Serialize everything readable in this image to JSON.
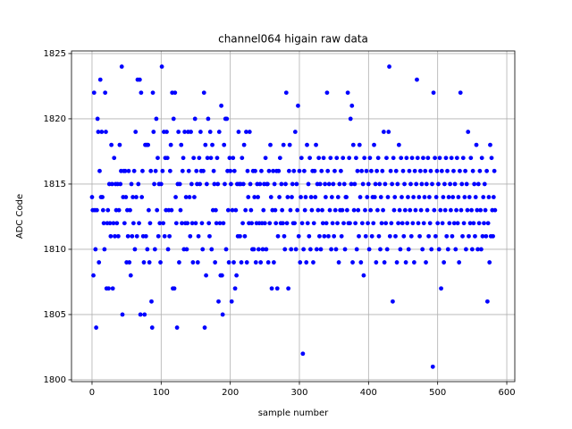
{
  "chart_data": {
    "type": "scatter",
    "title": "channel064 higain raw data",
    "x_label": "sample number",
    "y_label": "ADC Code",
    "color": "#0000ff",
    "grid": true,
    "xlim": [
      -29.7,
      611.6
    ],
    "xticks": [
      0,
      100,
      200,
      300,
      400,
      500,
      600
    ],
    "ylim": [
      1799.86,
      1825.2
    ],
    "yticks": [
      1800,
      1805,
      1810,
      1815,
      1820,
      1825
    ],
    "x": [
      0,
      1,
      2,
      3,
      4,
      5,
      6,
      7,
      8,
      9,
      10,
      11,
      12,
      13,
      14,
      15,
      16,
      17,
      18,
      19,
      20,
      21,
      22,
      23,
      24,
      25,
      26,
      27,
      28,
      29,
      30,
      31,
      32,
      33,
      34,
      35,
      36,
      37,
      38,
      39,
      40,
      41,
      42,
      43,
      44,
      45,
      46,
      47,
      48,
      49,
      50,
      51,
      52,
      53,
      54,
      55,
      56,
      57,
      58,
      59,
      60,
      61,
      62,
      63,
      64,
      65,
      66,
      67,
      68,
      69,
      70,
      71,
      72,
      73,
      74,
      75,
      76,
      77,
      78,
      79,
      80,
      81,
      82,
      83,
      84,
      85,
      86,
      87,
      88,
      89,
      90,
      91,
      92,
      93,
      94,
      95,
      96,
      97,
      98,
      99,
      100,
      101,
      102,
      103,
      104,
      105,
      106,
      107,
      108,
      109,
      110,
      111,
      112,
      113,
      114,
      115,
      116,
      117,
      118,
      119,
      120,
      121,
      122,
      123,
      124,
      125,
      126,
      127,
      128,
      129,
      130,
      131,
      132,
      133,
      134,
      135,
      136,
      137,
      138,
      139,
      140,
      141,
      142,
      143,
      144,
      145,
      146,
      147,
      148,
      149,
      150,
      151,
      152,
      153,
      154,
      155,
      156,
      157,
      158,
      159,
      160,
      161,
      162,
      163,
      164,
      165,
      166,
      167,
      168,
      169,
      170,
      171,
      172,
      173,
      174,
      175,
      176,
      177,
      178,
      179,
      180,
      181,
      182,
      183,
      184,
      185,
      186,
      187,
      188,
      189,
      190,
      191,
      192,
      193,
      194,
      195,
      196,
      197,
      198,
      199,
      200,
      201,
      202,
      203,
      204,
      205,
      206,
      207,
      208,
      209,
      210,
      211,
      212,
      213,
      214,
      215,
      216,
      217,
      218,
      219,
      220,
      221,
      222,
      223,
      224,
      225,
      226,
      227,
      228,
      229,
      230,
      231,
      232,
      233,
      234,
      235,
      236,
      237,
      238,
      239,
      240,
      241,
      242,
      243,
      244,
      245,
      246,
      247,
      248,
      249,
      250,
      251,
      252,
      253,
      254,
      255,
      256,
      257,
      258,
      259,
      260,
      261,
      262,
      263,
      264,
      265,
      266,
      267,
      268,
      269,
      270,
      271,
      272,
      273,
      274,
      275,
      276,
      277,
      278,
      279,
      280,
      281,
      282,
      283,
      284,
      285,
      286,
      287,
      288,
      289,
      290,
      291,
      292,
      293,
      294,
      295,
      296,
      297,
      298,
      299,
      300,
      301,
      302,
      303,
      304,
      305,
      306,
      307,
      308,
      309,
      310,
      311,
      312,
      313,
      314,
      315,
      316,
      317,
      318,
      319,
      320,
      321,
      322,
      323,
      324,
      325,
      326,
      327,
      328,
      329,
      330,
      331,
      332,
      333,
      334,
      335,
      336,
      337,
      338,
      339,
      340,
      341,
      342,
      343,
      344,
      345,
      346,
      347,
      348,
      349,
      350,
      351,
      352,
      353,
      354,
      355,
      356,
      357,
      358,
      359,
      360,
      361,
      362,
      363,
      364,
      365,
      366,
      367,
      368,
      369,
      370,
      371,
      372,
      373,
      374,
      375,
      376,
      377,
      378,
      379,
      380,
      381,
      382,
      383,
      384,
      385,
      386,
      387,
      388,
      389,
      390,
      391,
      392,
      393,
      394,
      395,
      396,
      397,
      398,
      399,
      400,
      401,
      402,
      403,
      404,
      405,
      406,
      407,
      408,
      409,
      410,
      411,
      412,
      413,
      414,
      415,
      416,
      417,
      418,
      419,
      420,
      421,
      422,
      423,
      424,
      425,
      426,
      427,
      428,
      429,
      430,
      431,
      432,
      433,
      434,
      435,
      436,
      437,
      438,
      439,
      440,
      441,
      442,
      443,
      444,
      445,
      446,
      447,
      448,
      449,
      450,
      451,
      452,
      453,
      454,
      455,
      456,
      457,
      458,
      459,
      460,
      461,
      462,
      463,
      464,
      465,
      466,
      467,
      468,
      469,
      470,
      471,
      472,
      473,
      474,
      475,
      476,
      477,
      478,
      479,
      480,
      481,
      482,
      483,
      484,
      485,
      486,
      487,
      488,
      489,
      490,
      491,
      492,
      493,
      494,
      495,
      496,
      497,
      498,
      499,
      500,
      501,
      502,
      503,
      504,
      505,
      506,
      507,
      508,
      509,
      510,
      511,
      512,
      513,
      514,
      515,
      516,
      517,
      518,
      519,
      520,
      521,
      522,
      523,
      524,
      525,
      526,
      527,
      528,
      529,
      530,
      531,
      532,
      533,
      534,
      535,
      536,
      537,
      538,
      539,
      540,
      541,
      542,
      543,
      544,
      545,
      546,
      547,
      548,
      549,
      550,
      551,
      552,
      553,
      554,
      555,
      556,
      557,
      558,
      559,
      560,
      561,
      562,
      563,
      564,
      565,
      566,
      567,
      568,
      569,
      570,
      571,
      572,
      573,
      574,
      575,
      576,
      577,
      578,
      579,
      580,
      581,
      582,
      583
    ],
    "values": [
      1814,
      1813,
      1808,
      1822,
      1813,
      1810,
      1804,
      1813,
      1820,
      1819,
      1809,
      1816,
      1823,
      1814,
      1819,
      1814,
      1813,
      1812,
      1810,
      1822,
      1819,
      1807,
      1812,
      1813,
      1807,
      1815,
      1812,
      1811,
      1818,
      1815,
      1807,
      1812,
      1817,
      1811,
      1815,
      1813,
      1812,
      1815,
      1811,
      1813,
      1818,
      1815,
      1816,
      1824,
      1805,
      1814,
      1816,
      1812,
      1816,
      1814,
      1809,
      1813,
      1811,
      1816,
      1809,
      1813,
      1808,
      1815,
      1811,
      1814,
      1812,
      1816,
      1810,
      1819,
      1814,
      1811,
      1823,
      1815,
      1812,
      1823,
      1805,
      1822,
      1814,
      1816,
      1811,
      1809,
      1805,
      1818,
      1811,
      1818,
      1810,
      1818,
      1813,
      1809,
      1812,
      1816,
      1806,
      1804,
      1822,
      1819,
      1815,
      1810,
      1816,
      1820,
      1813,
      1817,
      1811,
      1815,
      1812,
      1809,
      1815,
      1824,
      1816,
      1812,
      1819,
      1811,
      1817,
      1813,
      1819,
      1817,
      1810,
      1813,
      1811,
      1816,
      1818,
      1813,
      1822,
      1807,
      1820,
      1807,
      1822,
      1814,
      1812,
      1804,
      1815,
      1819,
      1809,
      1815,
      1813,
      1818,
      1812,
      1816,
      1817,
      1810,
      1819,
      1812,
      1814,
      1810,
      1812,
      1819,
      1816,
      1814,
      1811,
      1819,
      1815,
      1812,
      1809,
      1817,
      1814,
      1820,
      1812,
      1816,
      1815,
      1809,
      1811,
      1817,
      1815,
      1819,
      1816,
      1812,
      1810,
      1816,
      1822,
      1804,
      1818,
      1808,
      1815,
      1817,
      1820,
      1812,
      1811,
      1819,
      1817,
      1810,
      1818,
      1813,
      1816,
      1815,
      1809,
      1813,
      1812,
      1817,
      1815,
      1806,
      1819,
      1812,
      1808,
      1821,
      1808,
      1805,
      1812,
      1818,
      1815,
      1820,
      1810,
      1820,
      1816,
      1813,
      1809,
      1817,
      1816,
      1815,
      1806,
      1813,
      1817,
      1809,
      1816,
      1807,
      1813,
      1808,
      1815,
      1811,
      1819,
      1815,
      1811,
      1815,
      1809,
      1817,
      1812,
      1815,
      1818,
      1811,
      1813,
      1819,
      1809,
      1816,
      1814,
      1812,
      1819,
      1815,
      1813,
      1812,
      1810,
      1816,
      1810,
      1814,
      1816,
      1809,
      1812,
      1815,
      1814,
      1810,
      1812,
      1815,
      1809,
      1816,
      1812,
      1810,
      1813,
      1815,
      1812,
      1817,
      1810,
      1815,
      1815,
      1809,
      1816,
      1812,
      1818,
      1814,
      1807,
      1813,
      1816,
      1809,
      1815,
      1813,
      1812,
      1816,
      1807,
      1811,
      1816,
      1814,
      1817,
      1812,
      1815,
      1813,
      1812,
      1818,
      1811,
      1810,
      1815,
      1822,
      1812,
      1814,
      1807,
      1816,
      1818,
      1813,
      1810,
      1814,
      1815,
      1812,
      1816,
      1812,
      1819,
      1810,
      1815,
      1813,
      1821,
      1811,
      1816,
      1809,
      1814,
      1817,
      1812,
      1802,
      1810,
      1816,
      1813,
      1814,
      1809,
      1818,
      1812,
      1815,
      1811,
      1817,
      1810,
      1814,
      1813,
      1816,
      1809,
      1812,
      1816,
      1814,
      1818,
      1810,
      1815,
      1813,
      1817,
      1811,
      1815,
      1810,
      1816,
      1813,
      1812,
      1817,
      1811,
      1815,
      1814,
      1812,
      1822,
      1816,
      1811,
      1815,
      1813,
      1817,
      1810,
      1814,
      1812,
      1815,
      1811,
      1816,
      1813,
      1810,
      1817,
      1812,
      1814,
      1809,
      1815,
      1813,
      1816,
      1811,
      1813,
      1817,
      1812,
      1815,
      1810,
      1814,
      1814,
      1813,
      1822,
      1812,
      1817,
      1812,
      1820,
      1815,
      1821,
      1809,
      1818,
      1813,
      1815,
      1812,
      1817,
      1810,
      1816,
      1813,
      1811,
      1818,
      1814,
      1809,
      1816,
      1812,
      1815,
      1808,
      1817,
      1813,
      1811,
      1816,
      1814,
      1812,
      1815,
      1810,
      1817,
      1813,
      1816,
      1811,
      1814,
      1812,
      1818,
      1814,
      1815,
      1809,
      1816,
      1813,
      1817,
      1811,
      1815,
      1810,
      1814,
      1812,
      1816,
      1813,
      1819,
      1809,
      1815,
      1812,
      1817,
      1810,
      1814,
      1819,
      1824,
      1811,
      1816,
      1812,
      1815,
      1806,
      1817,
      1813,
      1814,
      1811,
      1816,
      1809,
      1815,
      1812,
      1818,
      1813,
      1810,
      1817,
      1814,
      1812,
      1816,
      1811,
      1815,
      1813,
      1809,
      1817,
      1812,
      1814,
      1810,
      1816,
      1813,
      1815,
      1811,
      1817,
      1812,
      1814,
      1809,
      1816,
      1813,
      1815,
      1823,
      1817,
      1812,
      1814,
      1811,
      1816,
      1813,
      1815,
      1810,
      1817,
      1812,
      1814,
      1816,
      1809,
      1815,
      1813,
      1817,
      1811,
      1814,
      1812,
      1816,
      1810,
      1815,
      1801,
      1822,
      1813,
      1817,
      1811,
      1814,
      1816,
      1812,
      1815,
      1810,
      1817,
      1813,
      1807,
      1816,
      1812,
      1814,
      1809,
      1815,
      1813,
      1817,
      1811,
      1816,
      1810,
      1814,
      1812,
      1815,
      1813,
      1817,
      1811,
      1814,
      1816,
      1812,
      1815,
      1810,
      1813,
      1817,
      1812,
      1814,
      1809,
      1816,
      1822,
      1813,
      1815,
      1811,
      1817,
      1812,
      1814,
      1816,
      1810,
      1815,
      1813,
      1819,
      1811,
      1814,
      1812,
      1817,
      1813,
      1810,
      1816,
      1812,
      1815,
      1811,
      1814,
      1818,
      1813,
      1810,
      1815,
      1812,
      1816,
      1813,
      1810,
      1817,
      1811,
      1814,
      1812,
      1815,
      1813,
      1811,
      1816,
      1806,
      1812,
      1814,
      1809,
      1818,
      1811,
      1817,
      1813,
      1811,
      1814,
      1816,
      1813
    ]
  }
}
